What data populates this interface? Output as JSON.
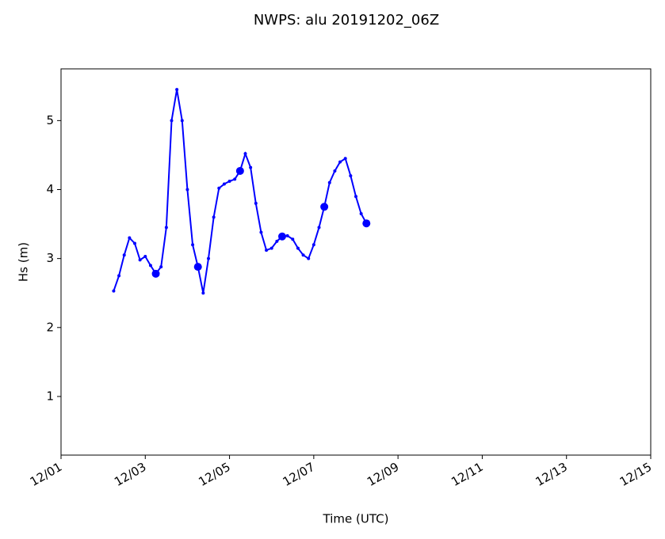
{
  "chart_data": {
    "type": "line",
    "title": "NWPS: alu 20191202_06Z",
    "x_label": "Time (UTC)",
    "y_label": "Hs (m)",
    "x": [
      2.25,
      2.375,
      2.5,
      2.625,
      2.75,
      2.875,
      3.0,
      3.125,
      3.25,
      3.375,
      3.5,
      3.625,
      3.75,
      3.875,
      4.0,
      4.125,
      4.25,
      4.375,
      4.5,
      4.625,
      4.75,
      4.875,
      5.0,
      5.125,
      5.25,
      5.375,
      5.5,
      5.625,
      5.75,
      5.875,
      6.0,
      6.125,
      6.25,
      6.375,
      6.5,
      6.625,
      6.75,
      6.875,
      7.0,
      7.125,
      7.25,
      7.375,
      7.5,
      7.625,
      7.75,
      7.875,
      8.0,
      8.125,
      8.25
    ],
    "series": [
      {
        "color": "#0000ff",
        "values": [
          2.53,
          2.75,
          3.05,
          3.3,
          3.22,
          2.98,
          3.03,
          2.9,
          2.78,
          2.88,
          3.45,
          5.0,
          5.45,
          5.0,
          4.0,
          3.2,
          2.88,
          2.5,
          3.0,
          3.6,
          4.02,
          4.08,
          4.12,
          4.15,
          4.27,
          4.52,
          4.32,
          3.8,
          3.38,
          3.12,
          3.15,
          3.25,
          3.32,
          3.33,
          3.28,
          3.15,
          3.05,
          3.0,
          3.2,
          3.45,
          3.75,
          4.1,
          4.27,
          4.4,
          4.45,
          4.2,
          3.9,
          3.65,
          3.51
        ]
      }
    ],
    "xlim": [
      1,
      15
    ],
    "xticks": [
      {
        "value": 1,
        "label": "12/01"
      },
      {
        "value": 3,
        "label": "12/03"
      },
      {
        "value": 5,
        "label": "12/05"
      },
      {
        "value": 7,
        "label": "12/07"
      },
      {
        "value": 9,
        "label": "12/09"
      },
      {
        "value": 11,
        "label": "12/11"
      },
      {
        "value": 13,
        "label": "12/13"
      },
      {
        "value": 15,
        "label": "12/15"
      }
    ],
    "ylim": [
      0.15,
      5.75
    ],
    "yticks": [
      1,
      2,
      3,
      4,
      5
    ],
    "grid": false
  }
}
